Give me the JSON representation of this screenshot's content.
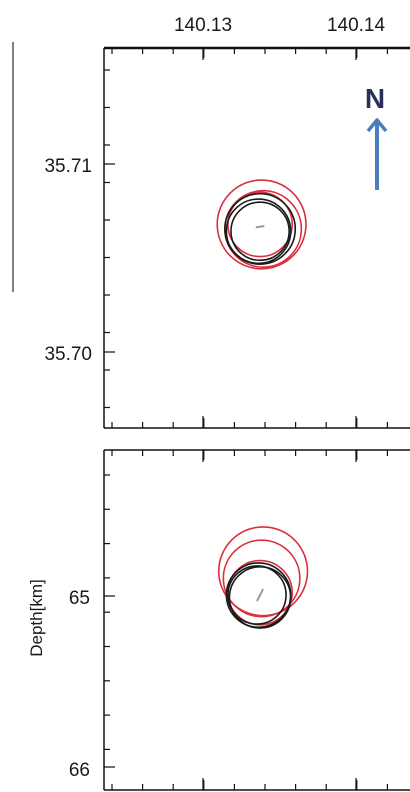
{
  "chart_data": [
    {
      "type": "scatter",
      "panel": "map-view",
      "xlabel": "",
      "ylabel": "",
      "x_ticks": [
        "140.13",
        "140.14"
      ],
      "y_ticks": [
        "35.71",
        "35.70"
      ],
      "xlim": [
        140.1235,
        140.1435
      ],
      "ylim": [
        35.6973,
        35.7141
      ],
      "north_arrow": {
        "label": "N",
        "color": "#4a7ebb"
      },
      "hypocenter": {
        "x": 140.1337,
        "y": 35.7062
      },
      "circles": [
        {
          "x": 140.1337,
          "y": 35.7063,
          "radius_deg": 0.0021,
          "color": "#d9303c"
        },
        {
          "x": 140.1339,
          "y": 35.7061,
          "radius_deg": 0.0025,
          "color": "#d9303c"
        },
        {
          "x": 140.1338,
          "y": 35.7063,
          "radius_deg": 0.0029,
          "color": "#d9303c"
        },
        {
          "x": 140.1337,
          "y": 35.7061,
          "radius_deg": 0.0023,
          "color": "#1a1a1a"
        },
        {
          "x": 140.1336,
          "y": 35.706,
          "radius_deg": 0.0021,
          "color": "#1a1a1a"
        },
        {
          "x": 140.1337,
          "y": 35.706,
          "radius_deg": 0.0019,
          "color": "#1a1a1a"
        }
      ]
    },
    {
      "type": "scatter",
      "panel": "depth-section",
      "xlabel": "",
      "ylabel": "Depth[km]",
      "y_ticks": [
        "65",
        "66"
      ],
      "xlim": [
        140.1235,
        140.1435
      ],
      "ylim": [
        65.98,
        64.55
      ],
      "hypocenter": {
        "x": 140.1337,
        "y": 65.16
      },
      "circles": [
        {
          "x": 140.1338,
          "y": 65.09,
          "radius_deg": 0.0025,
          "color": "#d9303c"
        },
        {
          "x": 140.1339,
          "y": 65.06,
          "radius_deg": 0.0029,
          "color": "#d9303c"
        },
        {
          "x": 140.1337,
          "y": 65.15,
          "radius_deg": 0.0021,
          "color": "#d9303c"
        },
        {
          "x": 140.1336,
          "y": 65.16,
          "radius_deg": 0.0021,
          "color": "#1a1a1a"
        },
        {
          "x": 140.1335,
          "y": 65.16,
          "radius_deg": 0.0019,
          "color": "#1a1a1a"
        },
        {
          "x": 140.1337,
          "y": 65.17,
          "radius_deg": 0.002,
          "color": "#1a1a1a"
        }
      ]
    }
  ]
}
